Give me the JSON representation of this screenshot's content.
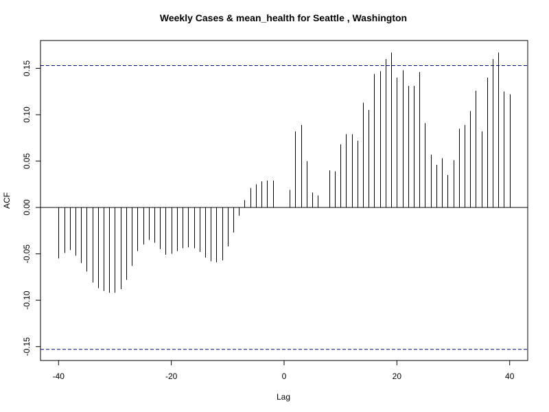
{
  "chart_data": {
    "type": "bar",
    "subtype": "ccf-stem",
    "title": "Weekly Cases & mean_health for Seattle , Washington",
    "xlabel": "Lag",
    "ylabel": "ACF",
    "xlim": [
      -43.2,
      43.2
    ],
    "ylim": [
      -0.165,
      0.18
    ],
    "x_ticks": [
      -40,
      -20,
      0,
      20,
      40
    ],
    "x_tick_labels": [
      "-40",
      "-20",
      "0",
      "20",
      "40"
    ],
    "y_ticks": [
      -0.15,
      -0.1,
      -0.05,
      0.0,
      0.05,
      0.1,
      0.15
    ],
    "y_tick_labels": [
      "-0.15",
      "-0.10",
      "-0.05",
      "0.00",
      "0.05",
      "0.10",
      "0.15"
    ],
    "confidence_bounds": [
      0.153,
      -0.153
    ],
    "zero_line": 0,
    "grid": false,
    "colors": {
      "stem": "#000000",
      "bound": "#00008B",
      "axis": "#000000"
    },
    "lags": [
      -40,
      -39,
      -38,
      -37,
      -36,
      -35,
      -34,
      -33,
      -32,
      -31,
      -30,
      -29,
      -28,
      -27,
      -26,
      -25,
      -24,
      -23,
      -22,
      -21,
      -20,
      -19,
      -18,
      -17,
      -16,
      -15,
      -14,
      -13,
      -12,
      -11,
      -10,
      -9,
      -8,
      -7,
      -6,
      -5,
      -4,
      -3,
      -2,
      -1,
      0,
      1,
      2,
      3,
      4,
      5,
      6,
      7,
      8,
      9,
      10,
      11,
      12,
      13,
      14,
      15,
      16,
      17,
      18,
      19,
      20,
      21,
      22,
      23,
      24,
      25,
      26,
      27,
      28,
      29,
      30,
      31,
      32,
      33,
      34,
      35,
      36,
      37,
      38,
      39,
      40
    ],
    "values": [
      -0.055,
      -0.049,
      -0.046,
      -0.052,
      -0.06,
      -0.069,
      -0.081,
      -0.087,
      -0.09,
      -0.092,
      -0.092,
      -0.088,
      -0.078,
      -0.063,
      -0.047,
      -0.04,
      -0.035,
      -0.038,
      -0.045,
      -0.051,
      -0.05,
      -0.047,
      -0.044,
      -0.043,
      -0.044,
      -0.048,
      -0.054,
      -0.058,
      -0.059,
      -0.057,
      -0.042,
      -0.027,
      -0.009,
      0.008,
      0.021,
      0.025,
      0.028,
      0.029,
      0.029,
      0.0,
      0.0,
      0.019,
      0.082,
      0.089,
      0.05,
      0.016,
      0.013,
      0.0,
      0.04,
      0.039,
      0.068,
      0.079,
      0.079,
      0.072,
      0.113,
      0.105,
      0.144,
      0.147,
      0.16,
      0.167,
      0.14,
      0.148,
      0.131,
      0.131,
      0.146,
      0.091,
      0.057,
      0.046,
      0.053,
      0.035,
      0.051,
      0.085,
      0.089,
      0.104,
      0.126,
      0.082,
      0.14,
      0.16,
      0.167,
      0.125,
      0.122
    ]
  }
}
